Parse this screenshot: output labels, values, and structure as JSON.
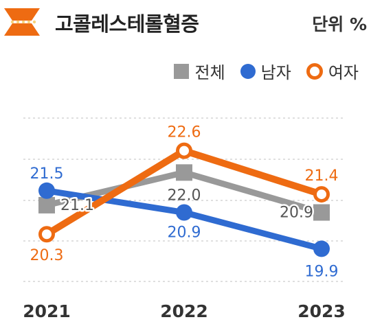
{
  "header": {
    "title": "고콜레스테롤혈증",
    "unit": "단위 %"
  },
  "icon": {
    "name": "hourglass-icon",
    "color": "#ee6b12"
  },
  "colors": {
    "total": "#999999",
    "male": "#2f6bd1",
    "female": "#ee6b12",
    "grid": "#cccccc"
  },
  "chart_data": {
    "type": "line",
    "title": "고콜레스테롤혈증",
    "unit": "단위 %",
    "categories": [
      "2021",
      "2022",
      "2023"
    ],
    "series": [
      {
        "name": "전체",
        "values": [
          21.1,
          22.0,
          20.9
        ],
        "marker": "square"
      },
      {
        "name": "남자",
        "values": [
          21.5,
          20.9,
          19.9
        ],
        "marker": "dot"
      },
      {
        "name": "여자",
        "values": [
          20.3,
          22.6,
          21.4
        ],
        "marker": "ring"
      }
    ],
    "ylim": [
      19.0,
      23.5
    ],
    "grid": true,
    "legend": "top-right"
  }
}
